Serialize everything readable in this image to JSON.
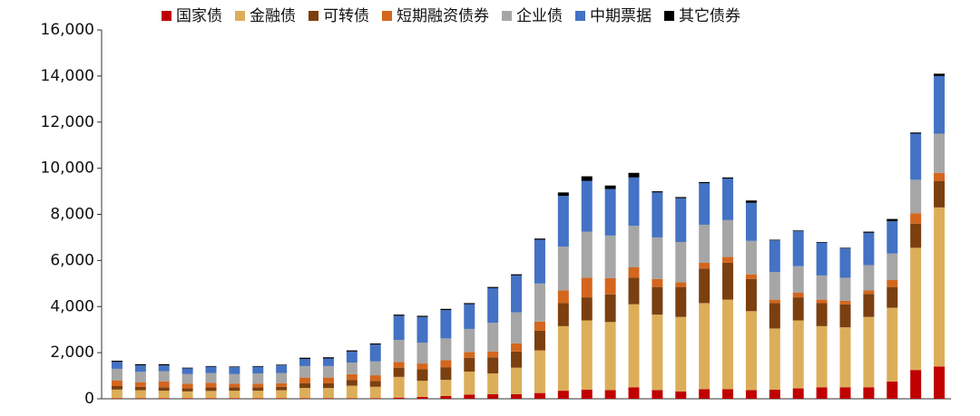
{
  "chart_data": {
    "type": "stacked_bar",
    "categories": [
      null,
      null,
      null,
      null,
      null,
      null,
      null,
      null,
      null,
      null,
      null,
      null,
      null,
      null,
      null,
      null,
      null,
      null,
      null,
      null,
      null,
      null,
      null,
      null,
      null,
      null,
      null,
      null,
      null,
      null,
      null,
      null,
      null,
      null,
      null,
      null
    ],
    "series": [
      {
        "name": "国家债",
        "color": "#c00000",
        "values": [
          20,
          20,
          20,
          20,
          20,
          20,
          20,
          20,
          20,
          20,
          20,
          20,
          50,
          80,
          120,
          180,
          200,
          200,
          250,
          350,
          400,
          380,
          500,
          380,
          320,
          420,
          420,
          380,
          400,
          450,
          500,
          500,
          500,
          750,
          1250,
          1400
        ]
      },
      {
        "name": "金融债",
        "color": "#dcae5a",
        "values": [
          380,
          350,
          330,
          300,
          320,
          330,
          330,
          350,
          450,
          450,
          550,
          500,
          900,
          700,
          700,
          1000,
          900,
          1150,
          1850,
          2800,
          3000,
          2950,
          3600,
          3270,
          3230,
          3730,
          3880,
          3420,
          2650,
          2950,
          2650,
          2600,
          3050,
          3200,
          5300,
          6900
        ]
      },
      {
        "name": "可转债",
        "color": "#7b3f10",
        "values": [
          150,
          150,
          150,
          130,
          150,
          150,
          150,
          150,
          200,
          200,
          250,
          250,
          400,
          500,
          550,
          600,
          700,
          700,
          850,
          1000,
          1000,
          1200,
          1150,
          1200,
          1300,
          1500,
          1600,
          1400,
          1100,
          1000,
          1000,
          1000,
          1000,
          900,
          1050,
          1150
        ]
      },
      {
        "name": "短期融资债券",
        "color": "#d4661e",
        "values": [
          250,
          200,
          250,
          200,
          200,
          150,
          150,
          150,
          250,
          250,
          250,
          250,
          250,
          250,
          300,
          250,
          250,
          350,
          400,
          550,
          850,
          700,
          450,
          350,
          200,
          250,
          250,
          200,
          150,
          200,
          150,
          150,
          150,
          300,
          450,
          350
        ]
      },
      {
        "name": "企业债",
        "color": "#a6a6a6",
        "values": [
          500,
          450,
          450,
          420,
          430,
          420,
          450,
          450,
          500,
          500,
          500,
          600,
          950,
          900,
          950,
          1000,
          1250,
          1350,
          1650,
          1900,
          2000,
          1850,
          1800,
          1800,
          1750,
          1650,
          1600,
          1450,
          1200,
          1150,
          1050,
          1000,
          1100,
          1150,
          1450,
          1700
        ]
      },
      {
        "name": "中期票据",
        "color": "#4472c4",
        "values": [
          300,
          280,
          250,
          250,
          270,
          300,
          290,
          330,
          310,
          330,
          480,
          730,
          1050,
          1120,
          1230,
          1070,
          1500,
          1600,
          1900,
          2200,
          2200,
          2020,
          2100,
          1950,
          1900,
          1800,
          1800,
          1650,
          1370,
          1520,
          1420,
          1270,
          1400,
          1400,
          2000,
          2500
        ]
      },
      {
        "name": "其它债券",
        "color": "#000000",
        "values": [
          50,
          50,
          50,
          30,
          30,
          30,
          30,
          30,
          50,
          50,
          50,
          50,
          50,
          50,
          50,
          50,
          50,
          50,
          50,
          150,
          200,
          150,
          200,
          50,
          50,
          50,
          50,
          100,
          30,
          30,
          30,
          30,
          50,
          100,
          50,
          100
        ]
      }
    ],
    "ylim": [
      0,
      16000
    ],
    "yticks": [
      0,
      {
        "value": 2000,
        "label": "2,000"
      },
      {
        "value": 4000,
        "label": "4,000"
      },
      {
        "value": 6000,
        "label": "6,000"
      },
      {
        "value": 8000,
        "label": "8,000"
      },
      {
        "value": 10000,
        "label": "10,000"
      },
      {
        "value": 12000,
        "label": "12,000"
      },
      {
        "value": 14000,
        "label": "14,000"
      },
      {
        "value": 16000,
        "label": "16,000"
      }
    ],
    "legend": "top"
  }
}
